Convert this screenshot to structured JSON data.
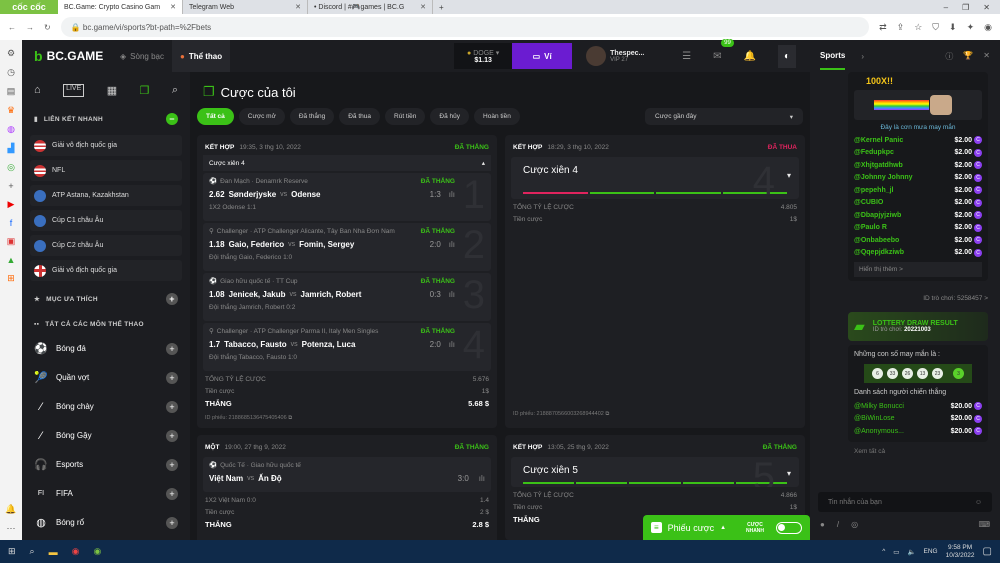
{
  "browser": {
    "brand": "cốc cốc",
    "tabs": [
      {
        "title": "BC.Game: Crypto Casino Gam",
        "active": true
      },
      {
        "title": "Telegram Web"
      },
      {
        "title": "• Discord | #🎮games | BC.G"
      }
    ],
    "url": "bc.game/vi/sports?bt-path=%2Fbets"
  },
  "header": {
    "logo": "BC.GAME",
    "nav": [
      "Sòng bạc",
      "Thể thao"
    ],
    "coin": "DOGE",
    "balance": "$1.13",
    "wallet_btn": "Ví",
    "username": "Thespec...",
    "vip": "VIP 27",
    "mail_badge": "99"
  },
  "chat_header": {
    "tab": "Sports"
  },
  "sidebar": {
    "quick_links_title": "LIÊN KẾT NHANH",
    "quick_links": [
      "Giải vô địch quốc gia",
      "NFL",
      "ATP Astana, Kazakhstan",
      "Cúp C1 châu Âu",
      "Cúp C2 châu Âu",
      "Giải vô địch quốc gia"
    ],
    "favorites_title": "MỤC ƯA THÍCH",
    "all_sports_title": "TẤT CẢ CÁC MÔN THỂ THAO",
    "sports": [
      "Bóng đá",
      "Quần vợt",
      "Bóng chày",
      "Bóng Gậy",
      "Esports",
      "FIFA",
      "Bóng rổ"
    ]
  },
  "main": {
    "title": "Cược của tôi",
    "filters": [
      "Tất cả",
      "Cược mở",
      "Đã thắng",
      "Đã thua",
      "Rút tiền",
      "Đã hủy",
      "Hoàn tiền"
    ],
    "sort": "Cược gần đây",
    "card1": {
      "type": "KẾT HỢP",
      "date": "19:35, 3 thg 10, 2022",
      "status": "ĐÃ THẮNG",
      "parlay": "Cược xiên 4",
      "legs": [
        {
          "league": "Đan Mạch · Denamrk Reserve",
          "status": "ĐÃ THẮNG",
          "odds": "2.62",
          "home": "Sønderjyske",
          "away": "Odense",
          "score": "1:3",
          "pick": "1X2 Odense  1:1",
          "n": "1"
        },
        {
          "league": "Challenger · ATP Challenger Alicante, Tây Ban Nha Đơn Nam",
          "status": "ĐÃ THẮNG",
          "odds": "1.18",
          "home": "Gaio, Federico",
          "away": "Fomin, Sergey",
          "score": "2:0",
          "pick": "Đội thắng Gaio, Federico  1:0",
          "n": "2"
        },
        {
          "league": "Giao hữu quốc tế · TT Cup",
          "status": "ĐÃ THẮNG",
          "odds": "1.08",
          "home": "Jenicek, Jakub",
          "away": "Jamrich, Robert",
          "score": "0:3",
          "pick": "Đội thắng Jamrich, Robert  0:2",
          "n": "3"
        },
        {
          "league": "Challenger · ATP Challenger Parma II, Italy Men Singles",
          "status": "ĐÃ THẮNG",
          "odds": "1.7",
          "home": "Tabacco, Fausto",
          "away": "Potenza, Luca",
          "score": "2:0",
          "pick": "Đội thắng Tabacco, Fausto  1:0",
          "n": "4"
        }
      ],
      "total_odds_label": "TỔNG TỶ LỆ CƯỢC",
      "total_odds": "5.676",
      "stake_label": "Tiền cược",
      "stake": "1$",
      "win_label": "THẮNG",
      "win": "5.68 $",
      "id": "ID phiếu: 2188685136475405406"
    },
    "card2": {
      "type": "KẾT HỢP",
      "date": "18:29, 3 thg 10, 2022",
      "status": "ĐÃ THUA",
      "parlay": "Cược xiên 4",
      "n": "4",
      "total_odds_label": "TỔNG TỶ LỆ CƯỢC",
      "total_odds": "4.805",
      "stake_label": "Tiền cược",
      "stake": "1$",
      "id": "ID phiếu: 2188870566003268944402"
    },
    "card3": {
      "type": "MỘT",
      "date": "19:00, 27 thg 9, 2022",
      "status": "ĐÃ THẮNG",
      "league": "Quốc Tế · Giao hữu quốc tế",
      "home": "Việt Nam",
      "away": "Ấn Độ",
      "score": "3:0",
      "pick": "1X2 Việt Nam  0:0",
      "odds": "1.4",
      "stake_label": "Tiền cược",
      "stake": "2 $",
      "win_label": "THẮNG",
      "win": "2.8 $"
    },
    "card4": {
      "type": "KẾT HỢP",
      "date": "13:05, 25 thg 9, 2022",
      "status": "ĐÃ THẮNG",
      "parlay": "Cược xiên 5",
      "n": "5",
      "total_odds_label": "TỔNG TỶ LỆ CƯỢC",
      "total_odds": "4.866",
      "stake_label": "Tiền cược",
      "stake": "1$",
      "win_label": "THẮNG"
    },
    "vs": "vs"
  },
  "chat": {
    "rain_title": "100X!!",
    "rain_caption": "Đây là cơn mưa may mắn",
    "rain_winners": [
      {
        "name": "@Kernel Panic",
        "amount": "$2.00"
      },
      {
        "name": "@Fedupkpc",
        "amount": "$2.00"
      },
      {
        "name": "@Xhjtgatdhwb",
        "amount": "$2.00"
      },
      {
        "name": "@Johnny Johnny",
        "amount": "$2.00"
      },
      {
        "name": "@pepehh_jl",
        "amount": "$2.00"
      },
      {
        "name": "@CUBIO",
        "amount": "$2.00"
      },
      {
        "name": "@Dbapjyjziwb",
        "amount": "$2.00"
      },
      {
        "name": "@Paulo R",
        "amount": "$2.00"
      },
      {
        "name": "@Onbabeebo",
        "amount": "$2.00"
      },
      {
        "name": "@Qqepjdkziwb",
        "amount": "$2.00"
      }
    ],
    "show_more": "Hiển thị thêm >",
    "game_id": "ID trò chơi: 5258457 >",
    "lottery": {
      "title": "LOTTERY DRAW RESULT",
      "id_label": "ID trò chơi:",
      "id": "20221003",
      "lucky_label": "Những con số may mắn là :",
      "numbers": [
        "6",
        "33",
        "26",
        "13",
        "23"
      ],
      "bonus": "3",
      "winners_label": "Danh sách người chiến thắng",
      "winners": [
        {
          "name": "@Milky Bonucci",
          "amount": "$20.00"
        },
        {
          "name": "@BiWinLose",
          "amount": "$20.00"
        },
        {
          "name": "@Anonymous...",
          "amount": "$20.00"
        }
      ],
      "see_all": "Xem tất cả"
    },
    "input_placeholder": "Tin nhắn của bạn"
  },
  "betslip": {
    "label": "Phiếu cược",
    "quick_bet": "CƯỢC NHANH"
  },
  "taskbar": {
    "lang": "ENG",
    "time": "9:58 PM",
    "date": "10/3/2022"
  }
}
